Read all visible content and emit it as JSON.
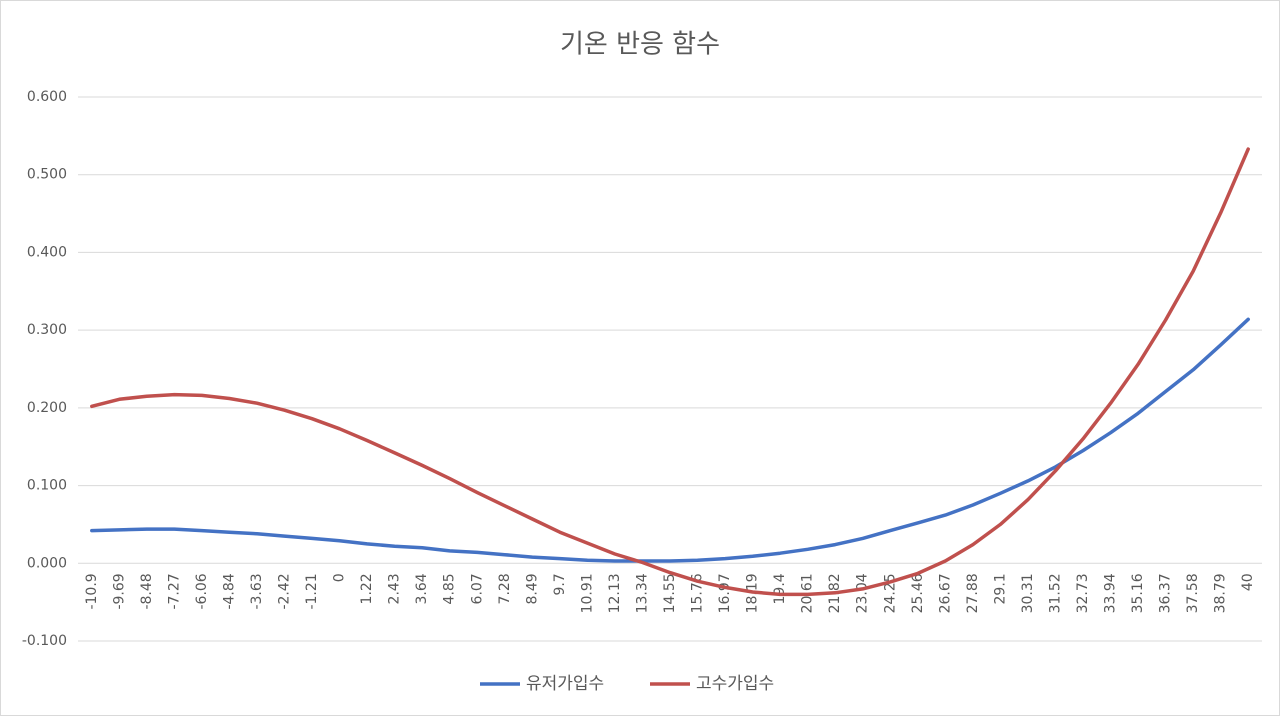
{
  "chart_data": {
    "type": "line",
    "title": "기온 반응 함수",
    "categories": [
      "-10.9",
      "-9.69",
      "-8.48",
      "-7.27",
      "-6.06",
      "-4.84",
      "-3.63",
      "-2.42",
      "-1.21",
      "0",
      "1.22",
      "2.43",
      "3.64",
      "4.85",
      "6.07",
      "7.28",
      "8.49",
      "9.7",
      "10.91",
      "12.13",
      "13.34",
      "14.55",
      "15.76",
      "16.97",
      "18.19",
      "19.4",
      "20.61",
      "21.82",
      "23.04",
      "24.25",
      "25.46",
      "26.67",
      "27.88",
      "29.1",
      "30.31",
      "31.52",
      "32.73",
      "33.94",
      "35.16",
      "36.37",
      "37.58",
      "38.79",
      "40"
    ],
    "series": [
      {
        "name": "유저가입수",
        "color": "#4472c4",
        "values": [
          0.042,
          0.043,
          0.044,
          0.044,
          0.042,
          0.04,
          0.038,
          0.035,
          0.032,
          0.029,
          0.025,
          0.022,
          0.02,
          0.016,
          0.014,
          0.011,
          0.008,
          0.006,
          0.004,
          0.003,
          0.003,
          0.003,
          0.004,
          0.006,
          0.009,
          0.013,
          0.018,
          0.024,
          0.032,
          0.042,
          0.052,
          0.062,
          0.075,
          0.09,
          0.106,
          0.124,
          0.145,
          0.168,
          0.193,
          0.221,
          0.249,
          0.281,
          0.314
        ]
      },
      {
        "name": "고수가입수",
        "color": "#c0504d",
        "values": [
          0.202,
          0.211,
          0.215,
          0.217,
          0.216,
          0.212,
          0.206,
          0.197,
          0.186,
          0.173,
          0.158,
          0.142,
          0.126,
          0.109,
          0.091,
          0.074,
          0.057,
          0.04,
          0.026,
          0.012,
          0.001,
          -0.012,
          -0.023,
          -0.031,
          -0.037,
          -0.04,
          -0.04,
          -0.038,
          -0.033,
          -0.024,
          -0.013,
          0.003,
          0.024,
          0.05,
          0.082,
          0.119,
          0.16,
          0.206,
          0.256,
          0.313,
          0.376,
          0.451,
          0.533
        ]
      }
    ],
    "ylim": [
      -0.1,
      0.6
    ],
    "yticks": [
      {
        "value": -0.1,
        "label": "-0.100"
      },
      {
        "value": 0,
        "label": "0.000"
      },
      {
        "value": 0.1,
        "label": "0.100"
      },
      {
        "value": 0.2,
        "label": "0.200"
      },
      {
        "value": 0.3,
        "label": "0.300"
      },
      {
        "value": 0.4,
        "label": "0.400"
      },
      {
        "value": 0.5,
        "label": "0.500"
      },
      {
        "value": 0.6,
        "label": "0.600"
      }
    ],
    "grid": true,
    "legend": "bottom"
  }
}
